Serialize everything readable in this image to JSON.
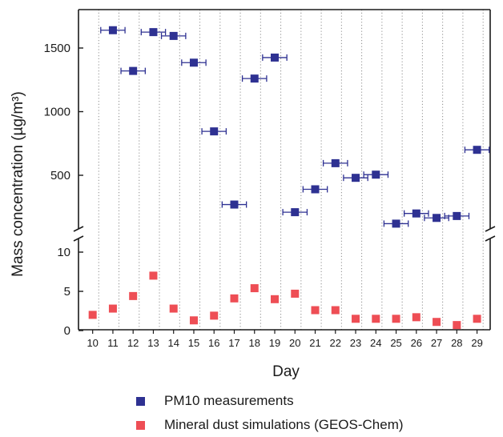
{
  "chart_data": {
    "type": "scatter",
    "xlabel": "Day",
    "ylabel": "Mass concentration (µg/m³)",
    "x_ticks": [
      "10",
      "11",
      "12",
      "13",
      "14",
      "15",
      "16",
      "17",
      "18",
      "19",
      "20",
      "21",
      "22",
      "23",
      "24",
      "25",
      "26",
      "27",
      "28",
      "29"
    ],
    "upper_axis": {
      "ylim": [
        0,
        1750
      ],
      "yticks": [
        500,
        1000,
        1500
      ]
    },
    "lower_axis": {
      "ylim": [
        0,
        12
      ],
      "yticks": [
        0,
        5,
        10
      ]
    },
    "axis_break": true,
    "vertical_gridlines": "dotted",
    "series": [
      {
        "name": "PM10 measurements",
        "color": "#2e3192",
        "marker": "square",
        "axis": "upper",
        "x_error_days": 0.6,
        "points": [
          {
            "x": 11.2,
            "y": 1640
          },
          {
            "x": 12.2,
            "y": 1320
          },
          {
            "x": 13.2,
            "y": 1625
          },
          {
            "x": 14.2,
            "y": 1595
          },
          {
            "x": 15.2,
            "y": 1385
          },
          {
            "x": 16.2,
            "y": 845
          },
          {
            "x": 17.2,
            "y": 270
          },
          {
            "x": 18.2,
            "y": 1260
          },
          {
            "x": 19.2,
            "y": 1425
          },
          {
            "x": 20.2,
            "y": 210
          },
          {
            "x": 21.2,
            "y": 390
          },
          {
            "x": 22.2,
            "y": 595
          },
          {
            "x": 23.2,
            "y": 480
          },
          {
            "x": 24.2,
            "y": 505
          },
          {
            "x": 25.2,
            "y": 120
          },
          {
            "x": 26.2,
            "y": 200
          },
          {
            "x": 27.2,
            "y": 165
          },
          {
            "x": 28.2,
            "y": 180
          },
          {
            "x": 29.2,
            "y": 700
          }
        ]
      },
      {
        "name": "Mineral dust simulations (GEOS-Chem)",
        "color": "#ee4e55",
        "marker": "square",
        "axis": "lower",
        "points": [
          {
            "x": 10.2,
            "y": 2.0
          },
          {
            "x": 11.2,
            "y": 2.8
          },
          {
            "x": 12.2,
            "y": 4.4
          },
          {
            "x": 13.2,
            "y": 7.0
          },
          {
            "x": 14.2,
            "y": 2.8
          },
          {
            "x": 15.2,
            "y": 1.3
          },
          {
            "x": 16.2,
            "y": 1.9
          },
          {
            "x": 17.2,
            "y": 4.1
          },
          {
            "x": 18.2,
            "y": 5.4
          },
          {
            "x": 19.2,
            "y": 4.0
          },
          {
            "x": 20.2,
            "y": 4.7
          },
          {
            "x": 21.2,
            "y": 2.6
          },
          {
            "x": 22.2,
            "y": 2.6
          },
          {
            "x": 23.2,
            "y": 1.5
          },
          {
            "x": 24.2,
            "y": 1.5
          },
          {
            "x": 25.2,
            "y": 1.5
          },
          {
            "x": 26.2,
            "y": 1.7
          },
          {
            "x": 27.2,
            "y": 1.1
          },
          {
            "x": 28.2,
            "y": 0.7
          },
          {
            "x": 29.2,
            "y": 1.5
          }
        ]
      }
    ],
    "legend": {
      "placement": "bottom",
      "items": [
        {
          "label": "PM10 measurements",
          "color": "#2e3192"
        },
        {
          "label": "Mineral dust simulations (GEOS-Chem)",
          "color": "#ee4e55"
        }
      ]
    }
  }
}
